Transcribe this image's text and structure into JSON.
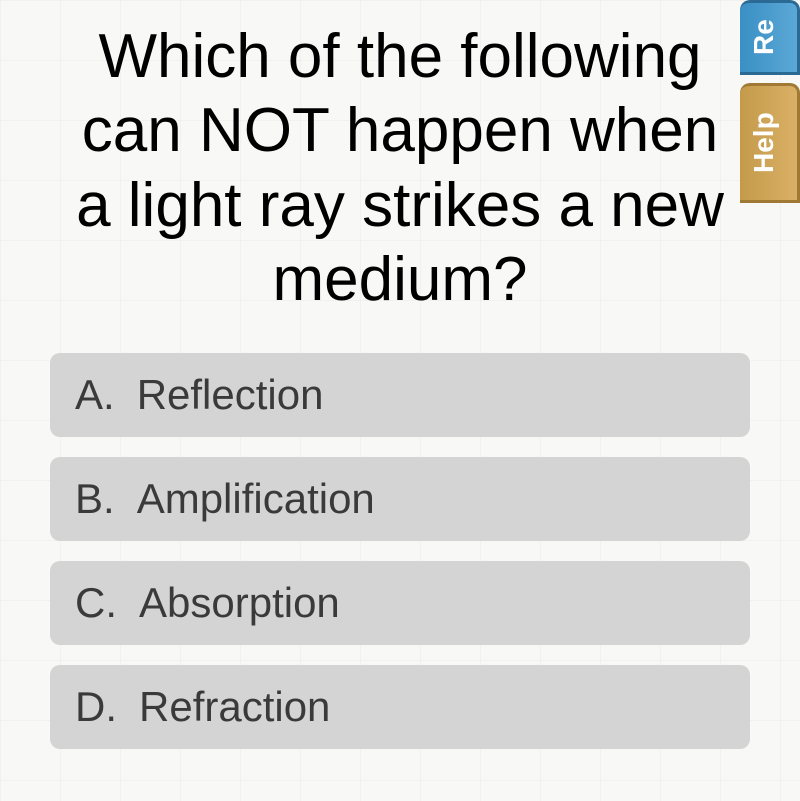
{
  "question": {
    "text": "Which of the following can NOT happen when a light ray strikes a new medium?"
  },
  "answers": [
    {
      "letter": "A.",
      "text": "Reflection"
    },
    {
      "letter": "B.",
      "text": "Amplification"
    },
    {
      "letter": "C.",
      "text": "Absorption"
    },
    {
      "letter": "D.",
      "text": "Refraction"
    }
  ],
  "tabs": {
    "reset": "Re",
    "help": "Help"
  },
  "colors": {
    "answer_bg": "#d4d4d4",
    "answer_text": "#3a3a3a",
    "question_text": "#000000",
    "page_bg": "#f8f8f6",
    "tab_reset_bg": "#4a9bc9",
    "tab_help_bg": "#cca358"
  }
}
